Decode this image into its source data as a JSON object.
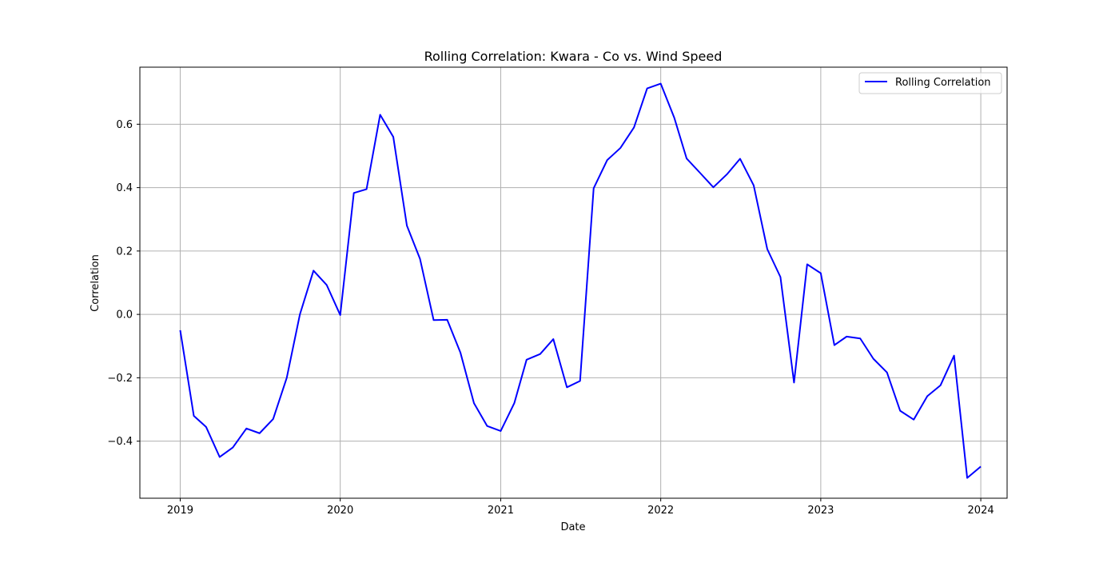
{
  "chart_data": {
    "type": "line",
    "title": "Rolling Correlation: Kwara - Co vs. Wind Speed",
    "xlabel": "Date",
    "ylabel": "Correlation",
    "xlim": [
      "2018-10-01",
      "2024-03-01"
    ],
    "ylim": [
      -0.58,
      0.78
    ],
    "x_ticks": [
      "2019",
      "2020",
      "2021",
      "2022",
      "2023",
      "2024"
    ],
    "y_ticks": [
      -0.4,
      -0.2,
      0.0,
      0.2,
      0.4,
      0.6
    ],
    "y_tick_labels": [
      "−0.4",
      "−0.2",
      "0.0",
      "0.2",
      "0.4",
      "0.6"
    ],
    "grid": true,
    "legend_position": "top-right",
    "series": [
      {
        "name": "Rolling Correlation",
        "color": "#0000ff",
        "x": [
          "2019-01-01",
          "2019-02-01",
          "2019-03-01",
          "2019-04-01",
          "2019-05-01",
          "2019-06-01",
          "2019-07-01",
          "2019-08-01",
          "2019-09-01",
          "2019-10-01",
          "2019-11-01",
          "2019-12-01",
          "2020-01-01",
          "2020-02-01",
          "2020-03-01",
          "2020-04-01",
          "2020-05-01",
          "2020-06-01",
          "2020-07-01",
          "2020-08-01",
          "2020-09-01",
          "2020-10-01",
          "2020-11-01",
          "2020-12-01",
          "2021-01-01",
          "2021-02-01",
          "2021-03-01",
          "2021-04-01",
          "2021-05-01",
          "2021-06-01",
          "2021-07-01",
          "2021-08-01",
          "2021-09-01",
          "2021-10-01",
          "2021-11-01",
          "2021-12-01",
          "2022-01-01",
          "2022-02-01",
          "2022-03-01",
          "2022-04-01",
          "2022-05-01",
          "2022-06-01",
          "2022-07-01",
          "2022-08-01",
          "2022-09-01",
          "2022-10-01",
          "2022-11-01",
          "2022-12-01",
          "2023-01-01",
          "2023-02-01",
          "2023-03-01",
          "2023-04-01",
          "2023-05-01",
          "2023-06-01",
          "2023-07-01",
          "2023-08-01",
          "2023-09-01",
          "2023-10-01",
          "2023-11-01",
          "2023-12-01",
          "2024-01-01"
        ],
        "values": [
          -0.05,
          -0.32,
          -0.355,
          -0.45,
          -0.42,
          -0.36,
          -0.375,
          -0.33,
          -0.2,
          0.0,
          0.138,
          0.093,
          -0.002,
          0.383,
          0.395,
          0.63,
          0.56,
          0.28,
          0.175,
          -0.018,
          -0.017,
          -0.12,
          -0.28,
          -0.352,
          -0.368,
          -0.28,
          -0.143,
          -0.125,
          -0.078,
          -0.23,
          -0.21,
          0.398,
          0.487,
          0.525,
          0.59,
          0.713,
          0.728,
          0.62,
          0.492,
          0.446,
          0.401,
          0.442,
          0.491,
          0.407,
          0.206,
          0.118,
          -0.215,
          0.158,
          0.13,
          -0.097,
          -0.07,
          -0.076,
          -0.14,
          -0.183,
          -0.304,
          -0.332,
          -0.258,
          -0.224,
          -0.13,
          -0.516,
          -0.48
        ]
      }
    ]
  }
}
